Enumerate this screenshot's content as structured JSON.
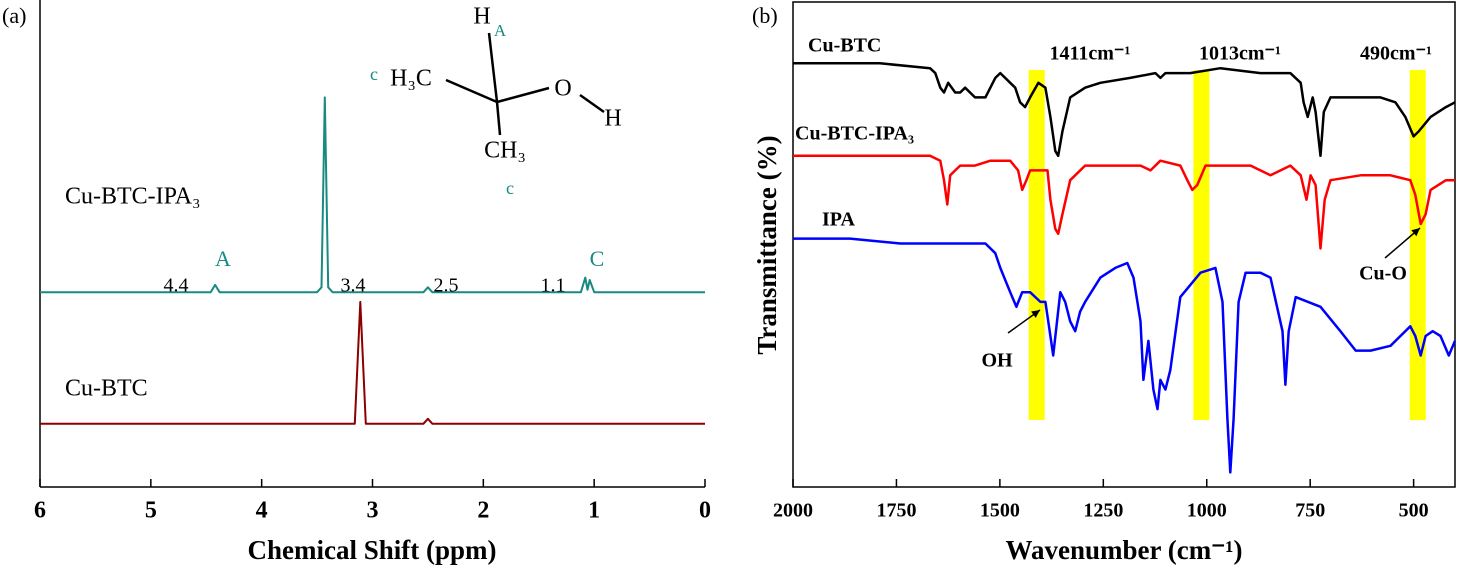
{
  "chart_data": [
    {
      "type": "line",
      "panel_label": "(a)",
      "xlabel": "Chemical Shift (ppm)",
      "xlim": [
        6,
        0
      ],
      "xticks": [
        6,
        5,
        4,
        3,
        2,
        1,
        0
      ],
      "ylim": [
        0,
        100
      ],
      "series": [
        {
          "name": "Cu-BTC-IPA₃",
          "color": "#188a82",
          "x": [
            6,
            4.46,
            4.42,
            4.38,
            3.5,
            3.46,
            3.43,
            3.4,
            3.36,
            2.54,
            2.5,
            2.46,
            1.12,
            1.08,
            1.06,
            1.04,
            1.0,
            0
          ],
          "values": [
            40,
            40,
            41.5,
            40,
            40,
            41,
            80,
            41,
            40,
            40,
            41,
            40,
            40,
            43,
            40.5,
            42.5,
            40,
            40
          ]
        },
        {
          "name": "Cu-BTC",
          "color": "#8b0000",
          "x": [
            6,
            3.16,
            3.11,
            3.06,
            2.54,
            2.5,
            2.46,
            0
          ],
          "values": [
            13,
            13,
            38,
            13,
            13,
            14,
            13,
            13
          ]
        }
      ],
      "annotations": [
        {
          "text": "4.4",
          "color": "#000000"
        },
        {
          "text": "A",
          "color": "#188a82"
        },
        {
          "text": "3.4",
          "color": "#000000"
        },
        {
          "text": "2.5",
          "color": "#000000"
        },
        {
          "text": "1.1",
          "color": "#000000"
        },
        {
          "text": "C",
          "color": "#188a82"
        }
      ],
      "structure_labels": [
        {
          "text": "H",
          "color": "#000000"
        },
        {
          "text": "A",
          "color": "#188a82"
        },
        {
          "text": "c",
          "color": "#188a82"
        },
        {
          "text": "H₃C",
          "color": "#000000"
        },
        {
          "text": "O",
          "color": "#000000"
        },
        {
          "text": "H",
          "color": "#000000"
        },
        {
          "text": "CH₃",
          "color": "#000000"
        },
        {
          "text": "c",
          "color": "#188a82"
        }
      ]
    },
    {
      "type": "line",
      "panel_label": "(b)",
      "xlabel": "Wavenumber (cm⁻¹)",
      "ylabel": "Transmittance (%)",
      "xlim": [
        2000,
        400
      ],
      "xticks": [
        2000,
        1750,
        1500,
        1250,
        1000,
        750,
        500
      ],
      "ylim": [
        0,
        100
      ],
      "highlight_color": "#ffff00",
      "highlights": [
        {
          "value": 1411,
          "label": "1411cm⁻¹"
        },
        {
          "value": 1013,
          "label": "1013cm⁻¹"
        },
        {
          "value": 490,
          "label": "490cm⁻¹"
        }
      ],
      "series": [
        {
          "name": "Cu-BTC",
          "color": "#000000",
          "x": [
            2000,
            1790,
            1669,
            1656,
            1644,
            1635,
            1625,
            1608,
            1596,
            1584,
            1560,
            1535,
            1511,
            1499,
            1475,
            1463,
            1451,
            1439,
            1427,
            1407,
            1390,
            1378,
            1366,
            1359,
            1349,
            1330,
            1294,
            1257,
            1185,
            1124,
            1112,
            1100,
            1040,
            967,
            870,
            798,
            773,
            766,
            756,
            744,
            737,
            725,
            717,
            701,
            664,
            628,
            580,
            544,
            520,
            500,
            488,
            459,
            422,
            400
          ],
          "values": [
            87,
            87,
            86,
            85,
            82,
            81,
            83,
            81,
            81,
            82,
            80,
            80,
            84,
            85,
            83,
            82,
            79,
            78,
            80,
            83,
            82,
            76,
            69,
            68,
            73,
            80,
            82,
            83,
            84,
            85,
            84,
            85,
            85,
            86,
            85,
            85,
            83,
            79,
            76,
            80,
            77,
            68,
            77,
            80,
            80,
            80,
            80,
            79,
            76,
            72,
            73,
            76,
            78,
            79
          ]
        },
        {
          "name": "Cu-BTC-IPA₃",
          "color": "#ff0000",
          "x": [
            2000,
            1669,
            1644,
            1635,
            1627,
            1620,
            1608,
            1596,
            1560,
            1523,
            1475,
            1456,
            1446,
            1436,
            1427,
            1402,
            1385,
            1378,
            1366,
            1359,
            1349,
            1330,
            1294,
            1257,
            1160,
            1136,
            1112,
            1064,
            1047,
            1035,
            1023,
            1003,
            894,
            846,
            798,
            773,
            759,
            749,
            737,
            725,
            715,
            701,
            628,
            556,
            508,
            496,
            483,
            471,
            459,
            422,
            400
          ],
          "values": [
            68,
            68,
            67,
            63,
            58,
            64,
            65,
            66,
            66,
            67,
            67,
            65,
            61,
            63,
            65,
            65,
            65,
            59,
            53,
            52,
            56,
            63,
            66,
            66,
            66,
            65,
            67,
            66,
            63,
            61,
            62,
            66,
            66,
            64,
            66,
            64,
            59,
            64,
            62,
            49,
            59,
            63,
            64,
            64,
            63,
            60,
            54,
            56,
            61,
            63,
            63
          ]
        },
        {
          "name": "IPA",
          "color": "#0000ff",
          "x": [
            2000,
            1862,
            1741,
            1620,
            1535,
            1511,
            1499,
            1475,
            1460,
            1446,
            1427,
            1402,
            1390,
            1378,
            1371,
            1354,
            1342,
            1330,
            1318,
            1306,
            1294,
            1257,
            1221,
            1192,
            1177,
            1160,
            1153,
            1141,
            1129,
            1119,
            1112,
            1100,
            1088,
            1064,
            1015,
            979,
            962,
            950,
            943,
            935,
            923,
            906,
            870,
            846,
            817,
            810,
            802,
            785,
            725,
            677,
            640,
            604,
            556,
            508,
            496,
            483,
            471,
            454,
            435,
            415,
            405,
            400
          ],
          "values": [
            51,
            51,
            50,
            50,
            50,
            48,
            45,
            40,
            37,
            40,
            40,
            38,
            38,
            31,
            27,
            40,
            38,
            34,
            32,
            36,
            38,
            43,
            45,
            46,
            43,
            34,
            22,
            30,
            20,
            16,
            22,
            20,
            24,
            39,
            44,
            45,
            38,
            14,
            3,
            14,
            38,
            44,
            44,
            43,
            32,
            21,
            32,
            39,
            37,
            32,
            28,
            28,
            29,
            33,
            31,
            27,
            31,
            32,
            31,
            27,
            29,
            30
          ]
        }
      ],
      "annotations": [
        {
          "text": "Cu-O"
        },
        {
          "text": "OH"
        }
      ]
    }
  ]
}
